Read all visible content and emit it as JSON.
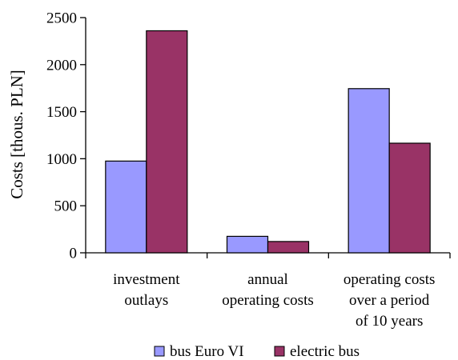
{
  "chart_data": {
    "type": "bar",
    "ylabel": "Costs [thous. PLN]",
    "xlabel": "",
    "title": "",
    "ylim": [
      0,
      2500
    ],
    "yticks": [
      0,
      500,
      1000,
      1500,
      2000,
      2500
    ],
    "categories": [
      [
        "investment",
        "outlays"
      ],
      [
        "annual",
        "operating costs"
      ],
      [
        "operating costs",
        "over a period",
        "of 10 years"
      ]
    ],
    "series": [
      {
        "name": "bus Euro VI",
        "color": "#9999ff",
        "values": [
          975,
          175,
          1745
        ]
      },
      {
        "name": "electric bus",
        "color": "#993366",
        "values": [
          2360,
          120,
          1165
        ]
      }
    ],
    "legend": "bottom",
    "grid": false
  }
}
